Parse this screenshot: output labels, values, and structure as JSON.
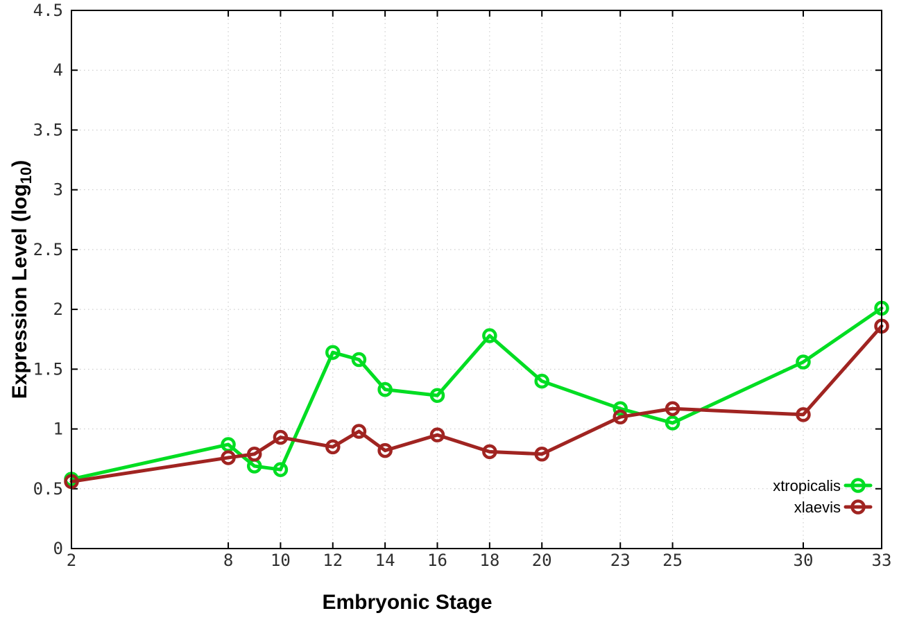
{
  "chart_data": {
    "type": "line",
    "title": "",
    "xlabel": "Embryonic Stage",
    "ylabel": {
      "pre": "Expression Level (log",
      "sub": "10",
      "post": ")"
    },
    "x": [
      2,
      8,
      9,
      10,
      12,
      13,
      14,
      16,
      18,
      20,
      23,
      25,
      30,
      33
    ],
    "series": [
      {
        "name": "xtropicalis",
        "color": "#00dd22",
        "values": [
          0.58,
          0.87,
          0.69,
          0.66,
          1.64,
          1.58,
          1.33,
          1.28,
          1.78,
          1.4,
          1.17,
          1.05,
          1.56,
          2.01
        ]
      },
      {
        "name": "xlaevis",
        "color": "#a02421",
        "values": [
          0.56,
          0.76,
          0.79,
          0.93,
          0.85,
          0.98,
          0.82,
          0.95,
          0.81,
          0.79,
          1.1,
          1.17,
          1.12,
          1.86
        ]
      }
    ],
    "xlim": [
      2,
      33
    ],
    "ylim": [
      0,
      4.5
    ],
    "xtick_labels": [
      "2",
      "8",
      "10",
      "12",
      "14",
      "16",
      "18",
      "20",
      "23",
      "25",
      "30",
      "33"
    ],
    "xtick_values": [
      2,
      8,
      10,
      12,
      14,
      16,
      18,
      20,
      23,
      25,
      30,
      33
    ],
    "ytick_labels": [
      "0",
      "0.5",
      "1",
      "1.5",
      "2",
      "2.5",
      "3",
      "3.5",
      "4",
      "4.5"
    ],
    "ytick_values": [
      0,
      0.5,
      1,
      1.5,
      2,
      2.5,
      3,
      3.5,
      4,
      4.5
    ],
    "grid": true,
    "legend_position": "inside-bottom-right",
    "legend_entries": [
      "xtropicalis",
      "xlaevis"
    ],
    "colors": {
      "grid": "#c4c4c4",
      "border": "#000000",
      "tick_text": "#2e2e2e"
    }
  }
}
